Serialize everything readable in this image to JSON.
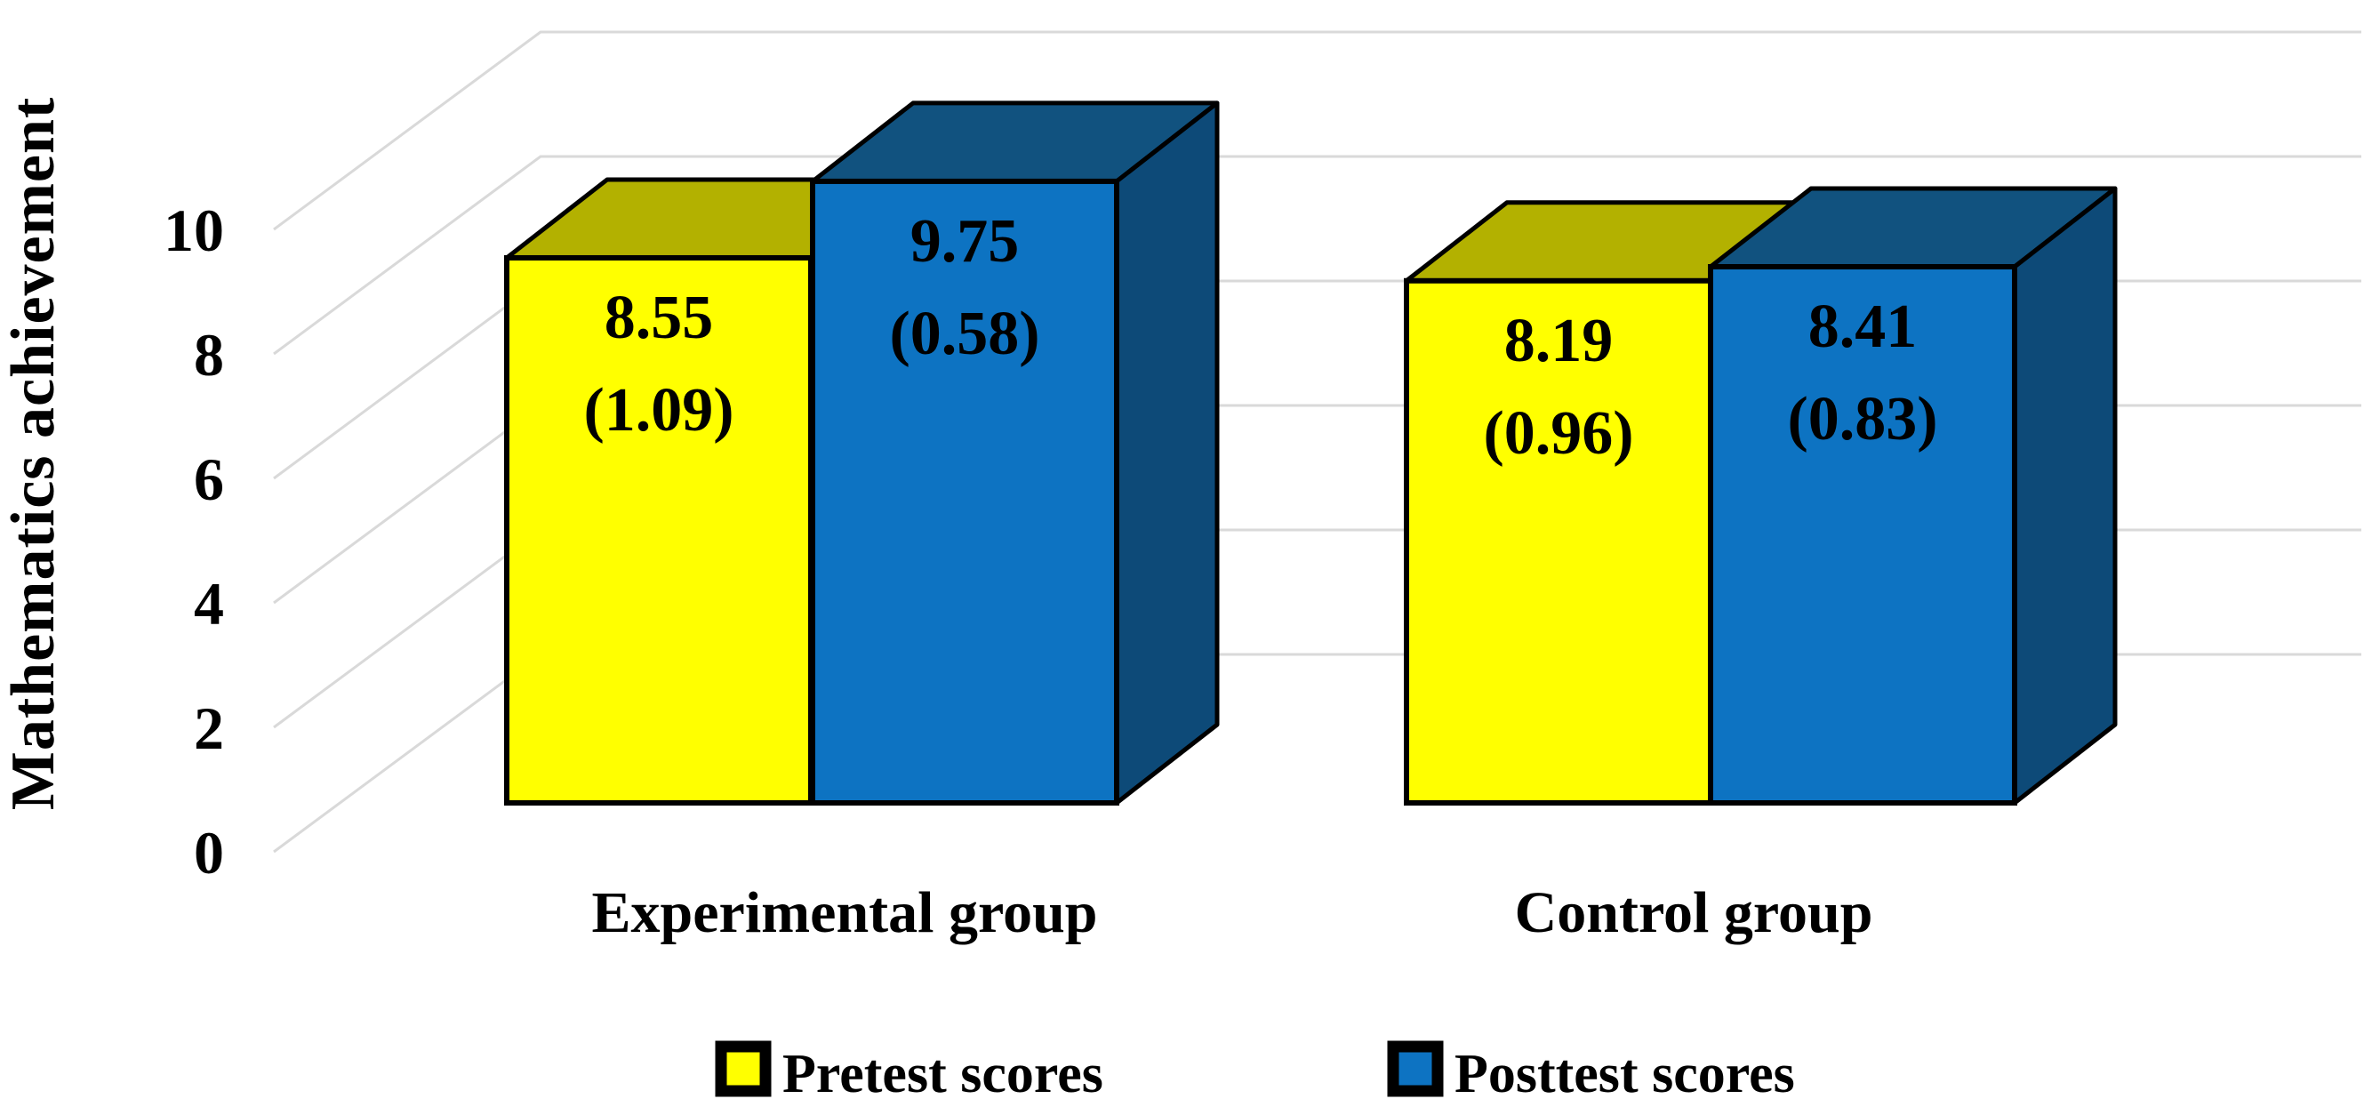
{
  "chart_data": {
    "type": "bar",
    "effect": "3d-extruded-columns",
    "title": "",
    "ylabel": "Mathematics achievement",
    "xlabel": "",
    "ylim": [
      0,
      10
    ],
    "yticks": [
      0,
      2,
      4,
      6,
      8,
      10
    ],
    "grid": "horizontal-back-wall",
    "legend_position": "bottom",
    "categories": [
      "Experimental group",
      "Control group"
    ],
    "series": [
      {
        "name": "Pretest scores",
        "values": [
          8.55,
          8.19
        ],
        "sd": [
          1.09,
          0.96
        ],
        "color_front": "#ffff00",
        "color_top": "#b3b100",
        "color_side": "#a8a600"
      },
      {
        "name": "Posttest scores",
        "values": [
          9.75,
          8.41
        ],
        "sd": [
          0.58,
          0.83
        ],
        "color_front": "#0d73c2",
        "color_top": "#11527f",
        "color_side": "#0d4a78"
      }
    ],
    "bar_labels": [
      [
        "8.55",
        "(1.09)",
        "9.75",
        "(0.58)"
      ],
      [
        "8.19",
        "(0.96)",
        "8.41",
        "(0.83)"
      ]
    ],
    "colors": {
      "gridline": "#d9d9d9",
      "outline": "#000000",
      "text": "#000000",
      "background": "#ffffff"
    }
  }
}
